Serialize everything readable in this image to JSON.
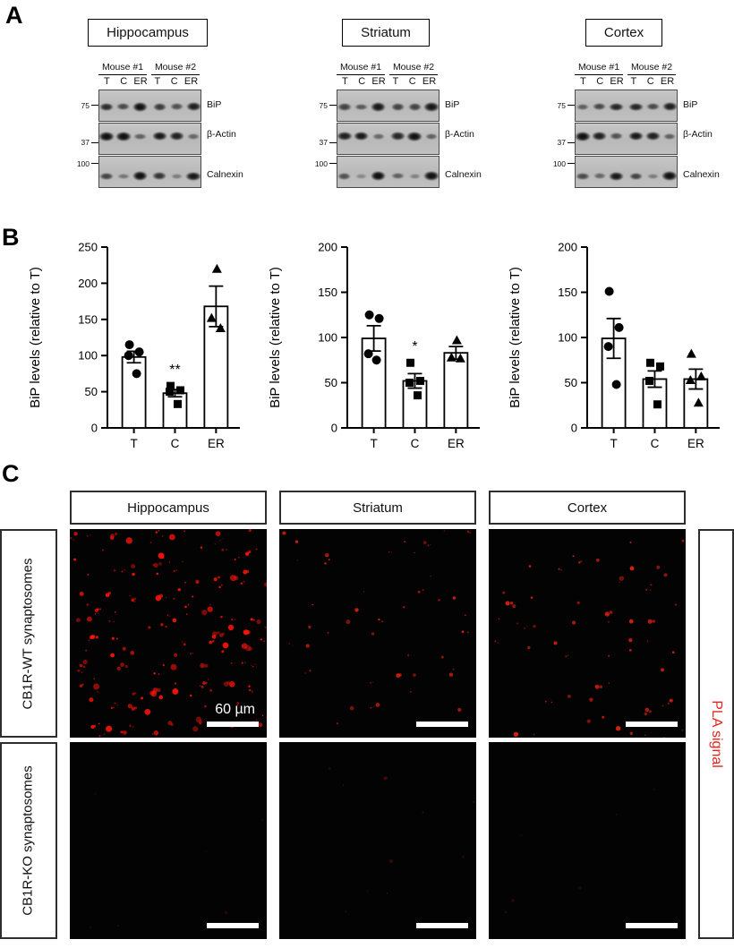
{
  "figure": {
    "panel_a": {
      "label": "A",
      "regions": [
        {
          "title": "Hippocampus",
          "mouse_labels": [
            "Mouse #1",
            "Mouse #2"
          ],
          "lane_labels": [
            "T",
            "C",
            "ER",
            "T",
            "C",
            "ER"
          ],
          "blots": [
            {
              "marker": "75",
              "protein": "BiP",
              "band_intensities": [
                0.75,
                0.55,
                0.95,
                0.65,
                0.5,
                0.85
              ]
            },
            {
              "marker": "37",
              "protein": "β-Actin",
              "band_intensities": [
                0.95,
                0.95,
                0.4,
                0.9,
                0.85,
                0.35
              ]
            },
            {
              "marker": "100",
              "protein": "Calnexin",
              "band_intensities": [
                0.6,
                0.25,
                0.95,
                0.7,
                0.2,
                0.9
              ]
            }
          ]
        },
        {
          "title": "Striatum",
          "mouse_labels": [
            "Mouse #1",
            "Mouse #2"
          ],
          "lane_labels": [
            "T",
            "C",
            "ER",
            "T",
            "C",
            "ER"
          ],
          "blots": [
            {
              "marker": "75",
              "protein": "BiP",
              "band_intensities": [
                0.6,
                0.45,
                0.9,
                0.6,
                0.6,
                0.9
              ]
            },
            {
              "marker": "37",
              "protein": "β-Actin",
              "band_intensities": [
                0.85,
                0.9,
                0.35,
                0.8,
                0.95,
                0.4
              ]
            },
            {
              "marker": "100",
              "protein": "Calnexin",
              "band_intensities": [
                0.5,
                0.1,
                0.98,
                0.4,
                0.15,
                0.95
              ]
            }
          ]
        },
        {
          "title": "Cortex",
          "mouse_labels": [
            "Mouse #1",
            "Mouse #2"
          ],
          "lane_labels": [
            "T",
            "C",
            "ER",
            "T",
            "C",
            "ER"
          ],
          "blots": [
            {
              "marker": "75",
              "protein": "BiP",
              "band_intensities": [
                0.4,
                0.55,
                0.8,
                0.8,
                0.55,
                0.85
              ]
            },
            {
              "marker": "37",
              "protein": "β-Actin",
              "band_intensities": [
                0.95,
                0.85,
                0.5,
                0.9,
                0.85,
                0.4
              ]
            },
            {
              "marker": "100",
              "protein": "Calnexin",
              "band_intensities": [
                0.55,
                0.35,
                0.9,
                0.6,
                0.2,
                0.95
              ]
            }
          ]
        }
      ]
    },
    "panel_b": {
      "label": "B"
    },
    "panel_c": {
      "label": "C",
      "column_headers": [
        "Hippocampus",
        "Striatum",
        "Cortex"
      ],
      "row_labels": [
        "CB1R-WT synaptosomes",
        "CB1R-KO synaptosomes"
      ],
      "side_label": "PLA signal",
      "side_label_color": "#e8251d",
      "scale_bar_label": "60 µm",
      "cells": [
        [
          {
            "name": "wt-hippocampus",
            "dot_count": 160,
            "dot_color": "#ff1408",
            "max_radius": 2.9,
            "base_opacity": 0.95,
            "cluster_prob": 0.4
          },
          {
            "name": "wt-striatum",
            "dot_count": 46,
            "dot_color": "#ff2513",
            "max_radius": 1.9,
            "base_opacity": 0.85,
            "cluster_prob": 0.2
          },
          {
            "name": "wt-cortex",
            "dot_count": 60,
            "dot_color": "#ff2513",
            "max_radius": 2.1,
            "base_opacity": 0.85,
            "cluster_prob": 0.2
          }
        ],
        [
          {
            "name": "ko-hippocampus",
            "dot_count": 6,
            "dot_color": "#8c130b",
            "max_radius": 1.4,
            "base_opacity": 0.35,
            "cluster_prob": 0.0
          },
          {
            "name": "ko-striatum",
            "dot_count": 10,
            "dot_color": "#a8170e",
            "max_radius": 1.5,
            "base_opacity": 0.45,
            "cluster_prob": 0.0
          },
          {
            "name": "ko-cortex",
            "dot_count": 8,
            "dot_color": "#8c130b",
            "max_radius": 1.4,
            "base_opacity": 0.35,
            "cluster_prob": 0.0
          }
        ]
      ]
    }
  },
  "chart_data": [
    {
      "type": "bar",
      "title": "Hippocampus",
      "categories": [
        "T",
        "C",
        "ER"
      ],
      "bar_values": [
        98,
        48,
        168
      ],
      "sem": [
        8,
        5,
        28
      ],
      "points": [
        [
          115,
          105,
          100,
          75
        ],
        [
          58,
          52,
          50,
          33
        ],
        [
          220,
          152,
          138
        ]
      ],
      "point_markers": [
        "circle",
        "square",
        "triangle"
      ],
      "significance": [
        "",
        "**",
        ""
      ],
      "ylabel": "BiP levels (relative to T)",
      "xlabel": "",
      "ylim": [
        0,
        250
      ],
      "yticks": [
        0,
        50,
        100,
        150,
        200,
        250
      ]
    },
    {
      "type": "bar",
      "title": "Striatum",
      "categories": [
        "T",
        "C",
        "ER"
      ],
      "bar_values": [
        99,
        52,
        83
      ],
      "sem": [
        14,
        8,
        7
      ],
      "points": [
        [
          125,
          121,
          82,
          75
        ],
        [
          72,
          52,
          50,
          36
        ],
        [
          97,
          78,
          77
        ]
      ],
      "point_markers": [
        "circle",
        "square",
        "triangle"
      ],
      "significance": [
        "",
        "*",
        ""
      ],
      "ylabel": "BiP levels (relative to T)",
      "xlabel": "",
      "ylim": [
        0,
        200
      ],
      "yticks": [
        0,
        50,
        100,
        150,
        200
      ]
    },
    {
      "type": "bar",
      "title": "Cortex",
      "categories": [
        "T",
        "C",
        "ER"
      ],
      "bar_values": [
        99,
        54,
        54
      ],
      "sem": [
        22,
        9,
        11
      ],
      "points": [
        [
          151,
          111,
          90,
          48
        ],
        [
          72,
          68,
          52,
          26
        ],
        [
          82,
          57,
          53,
          28
        ]
      ],
      "point_markers": [
        "circle",
        "square",
        "triangle"
      ],
      "significance": [
        "",
        "",
        ""
      ],
      "ylabel": "BiP levels (relative to T)",
      "xlabel": "",
      "ylim": [
        0,
        200
      ],
      "yticks": [
        0,
        50,
        100,
        150,
        200
      ]
    }
  ]
}
